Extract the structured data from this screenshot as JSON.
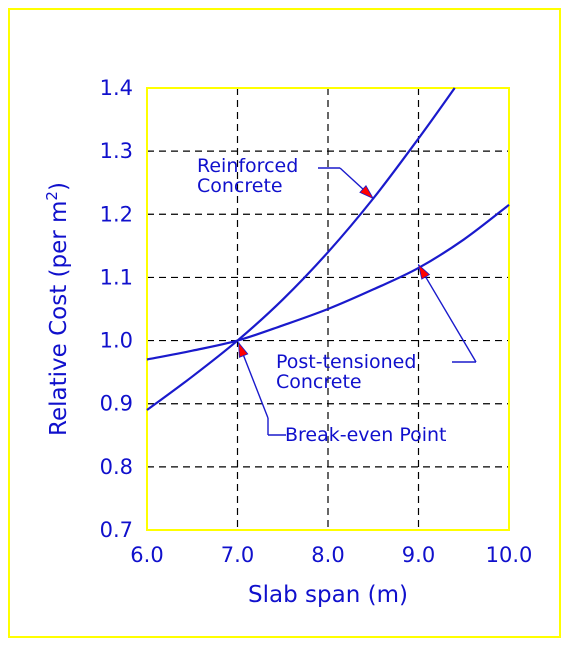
{
  "chart_data": {
    "type": "line",
    "xlabel": "Slab span (m)",
    "ylabel": "Relative Cost (per m",
    "ylabel_superscript": "2",
    "ylabel_close": ")",
    "xlim": [
      6.0,
      10.0
    ],
    "ylim": [
      0.7,
      1.4
    ],
    "grid": true,
    "x_ticks": [
      "6.0",
      "7.0",
      "8.0",
      "9.0",
      "10.0"
    ],
    "y_ticks": [
      "0.7",
      "0.8",
      "0.9",
      "1.0",
      "1.1",
      "1.2",
      "1.3",
      "1.4"
    ],
    "series": [
      {
        "name": "Reinforced Concrete",
        "x": [
          6.0,
          6.5,
          7.0,
          7.5,
          8.0,
          8.5,
          9.0,
          9.4
        ],
        "y": [
          0.89,
          0.943,
          1.0,
          1.065,
          1.14,
          1.225,
          1.32,
          1.4
        ]
      },
      {
        "name": "Post-tensioned Concrete",
        "x": [
          6.0,
          6.5,
          7.0,
          7.5,
          8.0,
          8.5,
          9.0,
          9.5,
          10.0
        ],
        "y": [
          0.97,
          0.984,
          1.0,
          1.024,
          1.05,
          1.081,
          1.115,
          1.16,
          1.215
        ]
      }
    ],
    "annotations": [
      {
        "lines": [
          "Reinforced",
          "Concrete"
        ],
        "points_to": [
          8.5,
          1.225
        ]
      },
      {
        "lines": [
          "Post-tensioned",
          "Concrete"
        ],
        "points_to": [
          9.0,
          1.12
        ]
      },
      {
        "lines": [
          "Break-even Point"
        ],
        "points_to": [
          7.0,
          1.0
        ]
      }
    ],
    "colors": {
      "curve": "#1a1acc",
      "text": "#1010cc",
      "grid": "#000000",
      "frame": "#ffff00",
      "arrowhead": "#ff0000"
    }
  }
}
